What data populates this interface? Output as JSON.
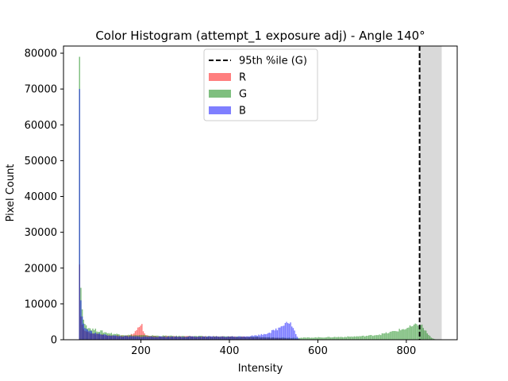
{
  "chart_data": {
    "type": "bar",
    "title": "Color Histogram (attempt_1 exposure adj) - Angle 140°",
    "xlabel": "Intensity",
    "ylabel": "Pixel Count",
    "xlim": [
      25,
      915
    ],
    "ylim": [
      0,
      82000
    ],
    "xticks": [
      200,
      400,
      600,
      800
    ],
    "yticks": [
      0,
      10000,
      20000,
      30000,
      40000,
      50000,
      60000,
      70000,
      80000
    ],
    "grid": false,
    "legend_position": "top-center",
    "bin_width": 3,
    "series": [
      {
        "name": "R",
        "color": "#ff0000",
        "alpha": 0.5,
        "points": [
          [
            60,
            21000
          ],
          [
            63,
            6500
          ],
          [
            66,
            4200
          ],
          [
            69,
            3000
          ],
          [
            72,
            2500
          ],
          [
            80,
            2100
          ],
          [
            90,
            1800
          ],
          [
            100,
            1600
          ],
          [
            110,
            1400
          ],
          [
            120,
            1300
          ],
          [
            130,
            1200
          ],
          [
            140,
            1150
          ],
          [
            150,
            1100
          ],
          [
            160,
            1100
          ],
          [
            170,
            1200
          ],
          [
            180,
            1500
          ],
          [
            185,
            2200
          ],
          [
            190,
            3000
          ],
          [
            193,
            4200
          ],
          [
            196,
            2800
          ],
          [
            199,
            4800
          ],
          [
            202,
            4500
          ],
          [
            205,
            1800
          ],
          [
            210,
            1200
          ],
          [
            220,
            1050
          ],
          [
            240,
            1000
          ],
          [
            260,
            950
          ],
          [
            280,
            950
          ],
          [
            300,
            900
          ],
          [
            320,
            900
          ],
          [
            340,
            900
          ],
          [
            360,
            880
          ],
          [
            380,
            860
          ],
          [
            400,
            850
          ],
          [
            420,
            840
          ],
          [
            440,
            800
          ],
          [
            460,
            700
          ],
          [
            480,
            600
          ],
          [
            500,
            500
          ],
          [
            520,
            450
          ],
          [
            540,
            350
          ],
          [
            560,
            100
          ],
          [
            580,
            20
          ]
        ]
      },
      {
        "name": "G",
        "color": "#008000",
        "alpha": 0.5,
        "points": [
          [
            60,
            79000
          ],
          [
            63,
            14500
          ],
          [
            66,
            8500
          ],
          [
            69,
            5600
          ],
          [
            72,
            4400
          ],
          [
            80,
            3400
          ],
          [
            90,
            2900
          ],
          [
            100,
            2600
          ],
          [
            110,
            2300
          ],
          [
            120,
            2000
          ],
          [
            130,
            1800
          ],
          [
            140,
            1600
          ],
          [
            150,
            1500
          ],
          [
            160,
            1400
          ],
          [
            170,
            1300
          ],
          [
            180,
            1250
          ],
          [
            200,
            1200
          ],
          [
            220,
            1150
          ],
          [
            240,
            1100
          ],
          [
            260,
            1050
          ],
          [
            280,
            1000
          ],
          [
            300,
            1000
          ],
          [
            320,
            980
          ],
          [
            340,
            950
          ],
          [
            360,
            930
          ],
          [
            380,
            900
          ],
          [
            400,
            880
          ],
          [
            420,
            850
          ],
          [
            440,
            800
          ],
          [
            460,
            750
          ],
          [
            480,
            700
          ],
          [
            500,
            650
          ],
          [
            520,
            600
          ],
          [
            540,
            550
          ],
          [
            560,
            550
          ],
          [
            580,
            600
          ],
          [
            600,
            650
          ],
          [
            620,
            700
          ],
          [
            640,
            750
          ],
          [
            660,
            800
          ],
          [
            680,
            900
          ],
          [
            700,
            1000
          ],
          [
            720,
            1200
          ],
          [
            740,
            1500
          ],
          [
            760,
            2000
          ],
          [
            780,
            2600
          ],
          [
            800,
            3200
          ],
          [
            815,
            3800
          ],
          [
            825,
            4200
          ],
          [
            833,
            4000
          ],
          [
            840,
            2800
          ],
          [
            848,
            1500
          ],
          [
            855,
            600
          ],
          [
            862,
            150
          ],
          [
            870,
            20
          ]
        ]
      },
      {
        "name": "B",
        "color": "#0000ff",
        "alpha": 0.5,
        "points": [
          [
            60,
            70000
          ],
          [
            63,
            11000
          ],
          [
            66,
            6500
          ],
          [
            69,
            4500
          ],
          [
            72,
            3300
          ],
          [
            80,
            2600
          ],
          [
            90,
            2000
          ],
          [
            100,
            1700
          ],
          [
            110,
            1500
          ],
          [
            120,
            1300
          ],
          [
            130,
            1200
          ],
          [
            140,
            1100
          ],
          [
            150,
            1000
          ],
          [
            160,
            950
          ],
          [
            170,
            900
          ],
          [
            180,
            900
          ],
          [
            200,
            850
          ],
          [
            220,
            850
          ],
          [
            240,
            850
          ],
          [
            260,
            850
          ],
          [
            280,
            850
          ],
          [
            300,
            850
          ],
          [
            320,
            850
          ],
          [
            340,
            850
          ],
          [
            360,
            850
          ],
          [
            380,
            850
          ],
          [
            400,
            850
          ],
          [
            420,
            900
          ],
          [
            440,
            1000
          ],
          [
            460,
            1200
          ],
          [
            470,
            1400
          ],
          [
            480,
            1700
          ],
          [
            490,
            2100
          ],
          [
            500,
            2600
          ],
          [
            510,
            3200
          ],
          [
            515,
            3700
          ],
          [
            520,
            4300
          ],
          [
            525,
            4900
          ],
          [
            530,
            5200
          ],
          [
            535,
            4800
          ],
          [
            540,
            4000
          ],
          [
            545,
            2800
          ],
          [
            550,
            1200
          ],
          [
            555,
            300
          ],
          [
            560,
            50
          ]
        ]
      }
    ],
    "reference_lines": [
      {
        "name": "95th %ile (G)",
        "x": 830,
        "style": "dashed",
        "color": "#000000"
      }
    ],
    "shaded_regions": [
      {
        "x0": 830,
        "x1": 880,
        "color": "#808080",
        "alpha": 0.3
      }
    ]
  }
}
